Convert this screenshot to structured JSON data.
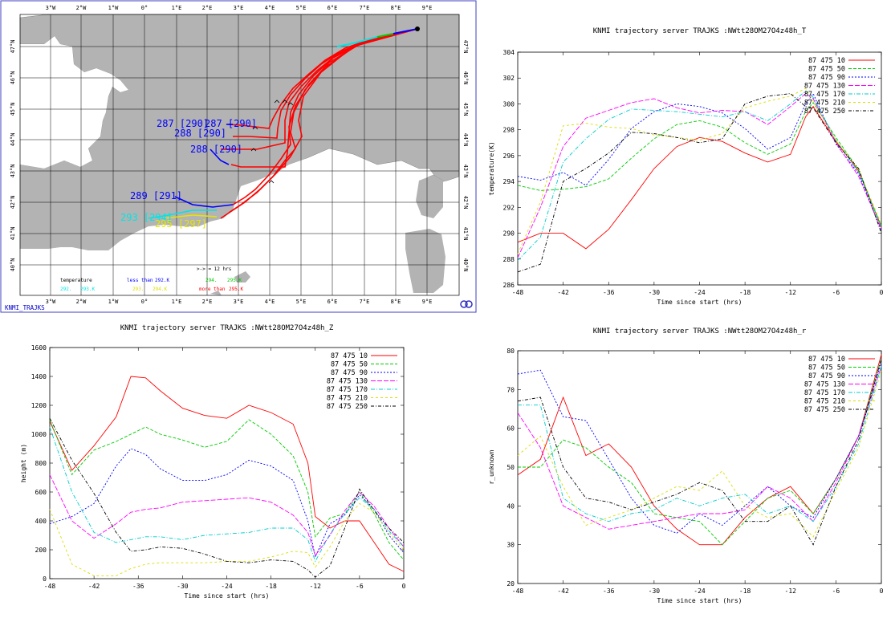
{
  "map": {
    "label_bottom": "KNMI_TRAJKS",
    "lon_labels": [
      "3°W",
      "2°W",
      "1°W",
      "0°",
      "1°E",
      "2°E",
      "3°E",
      "4°E",
      "5°E",
      "6°E",
      "7°E",
      "8°E",
      "9°E"
    ],
    "lat_labels": [
      "47°N",
      "46°N",
      "45°N",
      "44°N",
      "43°N",
      "42°N",
      "41°N",
      "40°N"
    ],
    "legend": {
      "temperature": "temperature",
      "interval": ">-> = 12 hrs",
      "less_than": "less than",
      "less_value": "292.K",
      "more_than": "more than",
      "more_value": "295.K",
      "c1": "292.",
      "c1b": "293.K",
      "y1": "293.",
      "y1b": "294.K",
      "g1": "294.",
      "g1b": "295.K"
    },
    "traj_labels": [
      {
        "text": "287 [290]",
        "color": "#0000ff"
      },
      {
        "text": "287 [290]",
        "color": "#0000ff"
      },
      {
        "text": "288 [290]",
        "color": "#0000ff"
      },
      {
        "text": "288 [290]",
        "color": "#0000ff"
      },
      {
        "text": "289 [291]",
        "color": "#0000ff"
      },
      {
        "text": "293 [294]",
        "color": "#00e5e5"
      },
      {
        "text": "295 [297]",
        "color": "#e5e500"
      }
    ],
    "colors": {
      "land": "#b3b3b3",
      "sea": "#ffffff",
      "grid": "#000000",
      "frame": "#4040c0"
    }
  },
  "chart_data": [
    {
      "type": "line",
      "title": "KNMI trajectory server TRAJKS :NWtt28OM27O4z48h_T",
      "xlabel": "Time since start (hrs)",
      "ylabel": "temperature(K)",
      "xlim": [
        -48,
        0
      ],
      "ylim": [
        286,
        304
      ],
      "xticks": [
        -48,
        -42,
        -36,
        -30,
        -24,
        -18,
        -12,
        -6,
        0
      ],
      "yticks": [
        286,
        288,
        290,
        292,
        294,
        296,
        298,
        300,
        302,
        304
      ],
      "legend": "top-right",
      "x": [
        -48,
        -45,
        -42,
        -39,
        -36,
        -33,
        -30,
        -27,
        -24,
        -21,
        -18,
        -15,
        -12,
        -10,
        -9,
        -6,
        -3,
        0
      ],
      "series": [
        {
          "name": "87 475 10",
          "color": "#ff0000",
          "dash": "none",
          "values": [
            289.3,
            290.0,
            290.0,
            288.8,
            290.3,
            292.6,
            295.0,
            296.7,
            297.4,
            297.1,
            296.2,
            295.5,
            296.1,
            299.0,
            299.8,
            297.1,
            294.8,
            290.5
          ]
        },
        {
          "name": "87 475 50",
          "color": "#00cc00",
          "dash": "4,2",
          "values": [
            293.7,
            293.3,
            293.4,
            293.6,
            294.2,
            295.8,
            297.3,
            298.4,
            298.7,
            298.2,
            297.0,
            296.1,
            296.9,
            299.4,
            300.1,
            297.4,
            294.9,
            290.4
          ]
        },
        {
          "name": "87 475 90",
          "color": "#0000ff",
          "dash": "2,2",
          "values": [
            294.4,
            294.1,
            294.7,
            293.7,
            295.7,
            298.1,
            299.4,
            300.0,
            299.8,
            299.3,
            298.1,
            296.5,
            297.4,
            300.0,
            300.8,
            296.9,
            294.6,
            290.2
          ]
        },
        {
          "name": "87 475 130",
          "color": "#ff00ff",
          "dash": "6,2",
          "values": [
            288.1,
            292.0,
            296.7,
            298.9,
            299.5,
            300.1,
            300.4,
            299.7,
            299.3,
            299.5,
            299.4,
            298.4,
            299.8,
            300.8,
            300.4,
            297.0,
            294.4,
            290.3
          ]
        },
        {
          "name": "87 475 170",
          "color": "#00cccc",
          "dash": "5,2,1,2",
          "values": [
            287.9,
            289.7,
            295.5,
            297.3,
            298.8,
            299.6,
            299.5,
            299.4,
            299.2,
            299.0,
            299.4,
            298.7,
            300.0,
            301.0,
            300.5,
            297.2,
            294.7,
            290.6
          ]
        },
        {
          "name": "87 475 210",
          "color": "#dddd00",
          "dash": "3,3",
          "values": [
            288.4,
            292.4,
            298.3,
            298.5,
            298.2,
            298.1,
            297.6,
            297.4,
            297.2,
            297.7,
            299.7,
            300.2,
            300.6,
            301.2,
            300.2,
            297.2,
            294.9,
            290.7
          ]
        },
        {
          "name": "87 475 250",
          "color": "#000000",
          "dash": "4,2,1,2",
          "values": [
            287.0,
            287.6,
            294.0,
            295.0,
            296.2,
            297.8,
            297.7,
            297.4,
            297.0,
            297.3,
            300.0,
            300.6,
            300.8,
            299.8,
            299.7,
            297.0,
            295.0,
            290.0
          ]
        }
      ]
    },
    {
      "type": "line",
      "title": "KNMI trajectory server TRAJKS :NWtt28OM27O4z48h_Z",
      "xlabel": "Time since start (hrs)",
      "ylabel": "height (m)",
      "xlim": [
        -48,
        0
      ],
      "ylim": [
        0,
        1600
      ],
      "xticks": [
        -48,
        -42,
        -36,
        -30,
        -24,
        -18,
        -12,
        -6,
        0
      ],
      "yticks": [
        0,
        200,
        400,
        600,
        800,
        1000,
        1200,
        1400,
        1600
      ],
      "legend": "top-right",
      "x": [
        -48,
        -45,
        -42,
        -39,
        -37,
        -35,
        -33,
        -30,
        -27,
        -24,
        -21,
        -18,
        -15,
        -13,
        -12,
        -10,
        -8,
        -6,
        -4,
        -2,
        0
      ],
      "series": [
        {
          "name": "87 475 10",
          "color": "#ff0000",
          "dash": "none",
          "values": [
            1090,
            750,
            920,
            1120,
            1400,
            1390,
            1300,
            1180,
            1130,
            1110,
            1200,
            1150,
            1070,
            800,
            430,
            350,
            400,
            400,
            250,
            100,
            50
          ]
        },
        {
          "name": "87 475 50",
          "color": "#00cc00",
          "dash": "4,2",
          "values": [
            1100,
            720,
            890,
            950,
            1000,
            1050,
            1000,
            960,
            910,
            950,
            1100,
            1000,
            850,
            600,
            290,
            420,
            450,
            600,
            450,
            250,
            130
          ]
        },
        {
          "name": "87 475 90",
          "color": "#0000ff",
          "dash": "2,2",
          "values": [
            380,
            430,
            520,
            780,
            900,
            860,
            760,
            680,
            680,
            720,
            820,
            780,
            680,
            400,
            150,
            380,
            440,
            580,
            480,
            300,
            180
          ]
        },
        {
          "name": "87 475 130",
          "color": "#ff00ff",
          "dash": "6,2",
          "values": [
            720,
            400,
            280,
            380,
            460,
            480,
            490,
            530,
            540,
            550,
            560,
            530,
            440,
            320,
            160,
            300,
            470,
            600,
            500,
            350,
            220
          ]
        },
        {
          "name": "87 475 170",
          "color": "#00cccc",
          "dash": "5,2,1,2",
          "values": [
            1050,
            600,
            320,
            250,
            270,
            290,
            290,
            270,
            300,
            310,
            320,
            350,
            350,
            270,
            120,
            310,
            450,
            560,
            480,
            330,
            220
          ]
        },
        {
          "name": "87 475 210",
          "color": "#dddd00",
          "dash": "3,3",
          "values": [
            480,
            100,
            20,
            20,
            70,
            100,
            110,
            110,
            110,
            120,
            120,
            150,
            190,
            180,
            80,
            220,
            400,
            520,
            460,
            320,
            200
          ]
        },
        {
          "name": "87 475 250",
          "color": "#000000",
          "dash": "4,2,1,2",
          "values": [
            1110,
            820,
            590,
            320,
            190,
            200,
            220,
            210,
            170,
            120,
            110,
            130,
            120,
            60,
            10,
            90,
            350,
            620,
            470,
            350,
            250
          ]
        }
      ]
    },
    {
      "type": "line",
      "title": "KNMI trajectory server TRAJKS :NWtt28OM27O4z48h_r",
      "xlabel": "Time since start (hrs)",
      "ylabel": "r_unknown",
      "xlim": [
        -48,
        0
      ],
      "ylim": [
        20,
        80
      ],
      "xticks": [
        -48,
        -42,
        -36,
        -30,
        -24,
        -18,
        -12,
        -6,
        0
      ],
      "yticks": [
        20,
        30,
        40,
        50,
        60,
        70,
        80
      ],
      "legend": "top-right",
      "x": [
        -48,
        -45,
        -42,
        -39,
        -36,
        -33,
        -30,
        -27,
        -24,
        -21,
        -18,
        -15,
        -12,
        -9,
        -6,
        -3,
        0
      ],
      "series": [
        {
          "name": "87 475 10",
          "color": "#ff0000",
          "dash": "none",
          "values": [
            48,
            52,
            68,
            53,
            56,
            50,
            40,
            34,
            30,
            30,
            37,
            42,
            45,
            38,
            47,
            58,
            79
          ]
        },
        {
          "name": "87 475 50",
          "color": "#00cc00",
          "dash": "4,2",
          "values": [
            50,
            50,
            57,
            55,
            50,
            46,
            38,
            37,
            36,
            30,
            36,
            42,
            44,
            38,
            47,
            58,
            78
          ]
        },
        {
          "name": "87 475 90",
          "color": "#0000ff",
          "dash": "2,2",
          "values": [
            74,
            75,
            63,
            62,
            52,
            42,
            35,
            33,
            38,
            35,
            40,
            45,
            40,
            37,
            47,
            58,
            77
          ]
        },
        {
          "name": "87 475 130",
          "color": "#ff00ff",
          "dash": "6,2",
          "values": [
            64,
            55,
            40,
            37,
            34,
            35,
            36,
            37,
            38,
            38,
            39,
            45,
            42,
            36,
            46,
            58,
            76
          ]
        },
        {
          "name": "87 475 170",
          "color": "#00cccc",
          "dash": "5,2,1,2",
          "values": [
            66,
            66,
            42,
            38,
            36,
            38,
            39,
            42,
            40,
            42,
            43,
            38,
            40,
            36,
            45,
            56,
            76
          ]
        },
        {
          "name": "87 475 210",
          "color": "#dddd00",
          "dash": "3,3",
          "values": [
            53,
            58,
            45,
            35,
            37,
            39,
            42,
            45,
            44,
            49,
            40,
            37,
            38,
            32,
            44,
            55,
            75
          ]
        },
        {
          "name": "87 475 250",
          "color": "#000000",
          "dash": "4,2,1,2",
          "values": [
            67,
            68,
            50,
            42,
            41,
            39,
            41,
            43,
            46,
            44,
            36,
            36,
            40,
            30,
            45,
            57,
            78
          ]
        }
      ]
    }
  ]
}
